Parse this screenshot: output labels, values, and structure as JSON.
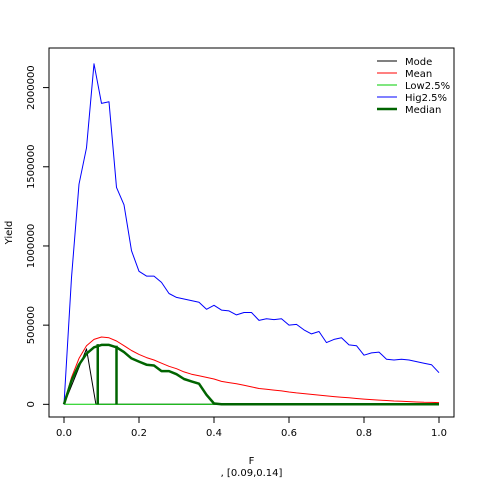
{
  "chart_data": {
    "type": "line",
    "title": "",
    "xlabel": "F",
    "subtitle": ", [0.09,0.14]",
    "ylabel": "Yield",
    "xlim": [
      -0.04,
      1.04
    ],
    "ylim": [
      -80000,
      2250000
    ],
    "x_ticks": [
      0,
      0.2,
      0.4,
      0.6,
      0.8,
      1
    ],
    "x_tick_labels": [
      "0.0",
      "0.2",
      "0.4",
      "0.6",
      "0.8",
      "1.0"
    ],
    "y_ticks": [
      0,
      500000,
      1000000,
      1500000,
      2000000
    ],
    "y_tick_labels": [
      "0",
      "500000",
      "1000000",
      "1500000",
      "2000000"
    ],
    "grid": false,
    "legend_position": "top-right",
    "series": [
      {
        "name": "Mode",
        "color": "#000000",
        "width": 1,
        "x": [
          0,
          0.06,
          0.085,
          0.09,
          1
        ],
        "y": [
          0,
          350000,
          0,
          0,
          0
        ]
      },
      {
        "name": "Mean",
        "color": "#ff0000",
        "width": 1,
        "x": [
          0,
          0.02,
          0.04,
          0.06,
          0.08,
          0.1,
          0.12,
          0.14,
          0.16,
          0.18,
          0.2,
          0.22,
          0.24,
          0.26,
          0.28,
          0.3,
          0.32,
          0.34,
          0.36,
          0.38,
          0.4,
          0.42,
          0.44,
          0.46,
          0.48,
          0.5,
          0.52,
          0.54,
          0.56,
          0.58,
          0.6,
          0.62,
          0.64,
          0.66,
          0.68,
          0.7,
          0.72,
          0.74,
          0.76,
          0.78,
          0.8,
          0.82,
          0.84,
          0.86,
          0.88,
          0.9,
          0.92,
          0.94,
          0.96,
          0.98,
          1.0
        ],
        "y": [
          0,
          170000,
          290000,
          370000,
          410000,
          425000,
          420000,
          400000,
          370000,
          340000,
          315000,
          295000,
          280000,
          260000,
          240000,
          225000,
          205000,
          190000,
          180000,
          170000,
          160000,
          145000,
          137000,
          130000,
          120000,
          110000,
          100000,
          95000,
          90000,
          85000,
          78000,
          72000,
          68000,
          63000,
          58000,
          53000,
          49000,
          45000,
          41000,
          37000,
          33000,
          30000,
          27000,
          24000,
          21000,
          19000,
          17000,
          15000,
          13000,
          12000,
          11000
        ]
      },
      {
        "name": "Low2.5%",
        "color": "#00cc00",
        "width": 1,
        "x": [
          0,
          0.1,
          0.2,
          0.3,
          0.4,
          0.5,
          0.6,
          0.7,
          0.8,
          0.9,
          1.0
        ],
        "y": [
          0,
          0,
          0,
          0,
          0,
          0,
          0,
          0,
          0,
          0,
          0
        ]
      },
      {
        "name": "Hig2.5%",
        "color": "#0000ff",
        "width": 1,
        "x": [
          0,
          0.02,
          0.04,
          0.06,
          0.08,
          0.1,
          0.12,
          0.14,
          0.16,
          0.18,
          0.2,
          0.22,
          0.24,
          0.26,
          0.28,
          0.3,
          0.32,
          0.34,
          0.36,
          0.38,
          0.4,
          0.42,
          0.44,
          0.46,
          0.48,
          0.5,
          0.52,
          0.54,
          0.56,
          0.58,
          0.6,
          0.62,
          0.64,
          0.66,
          0.68,
          0.7,
          0.72,
          0.74,
          0.76,
          0.78,
          0.8,
          0.82,
          0.84,
          0.86,
          0.88,
          0.9,
          0.92,
          0.94,
          0.96,
          0.98,
          1.0
        ],
        "y": [
          0,
          800000,
          1390000,
          1620000,
          2150000,
          1900000,
          1910000,
          1370000,
          1260000,
          970000,
          840000,
          810000,
          810000,
          770000,
          700000,
          675000,
          665000,
          655000,
          645000,
          600000,
          625000,
          595000,
          590000,
          565000,
          580000,
          580000,
          530000,
          540000,
          535000,
          540000,
          500000,
          505000,
          470000,
          445000,
          460000,
          390000,
          410000,
          420000,
          375000,
          370000,
          310000,
          325000,
          330000,
          285000,
          280000,
          285000,
          280000,
          270000,
          260000,
          250000,
          200000
        ]
      },
      {
        "name": "Median",
        "color": "#006400",
        "width": 2.5,
        "x": [
          0,
          0.02,
          0.04,
          0.06,
          0.08,
          0.1,
          0.12,
          0.14,
          0.16,
          0.18,
          0.2,
          0.22,
          0.24,
          0.26,
          0.28,
          0.3,
          0.32,
          0.34,
          0.36,
          0.38,
          0.4,
          0.42,
          0.44,
          0.5,
          0.6,
          0.7,
          0.8,
          0.9,
          1.0
        ],
        "y": [
          0,
          150000,
          250000,
          320000,
          360000,
          375000,
          375000,
          360000,
          330000,
          290000,
          270000,
          250000,
          245000,
          210000,
          210000,
          190000,
          160000,
          145000,
          130000,
          60000,
          5000,
          0,
          0,
          0,
          0,
          0,
          0,
          0,
          0
        ]
      }
    ],
    "interval_markers": {
      "color": "#006400",
      "x": [
        0.09,
        0.14
      ],
      "y": [
        380000,
        370000
      ]
    }
  }
}
